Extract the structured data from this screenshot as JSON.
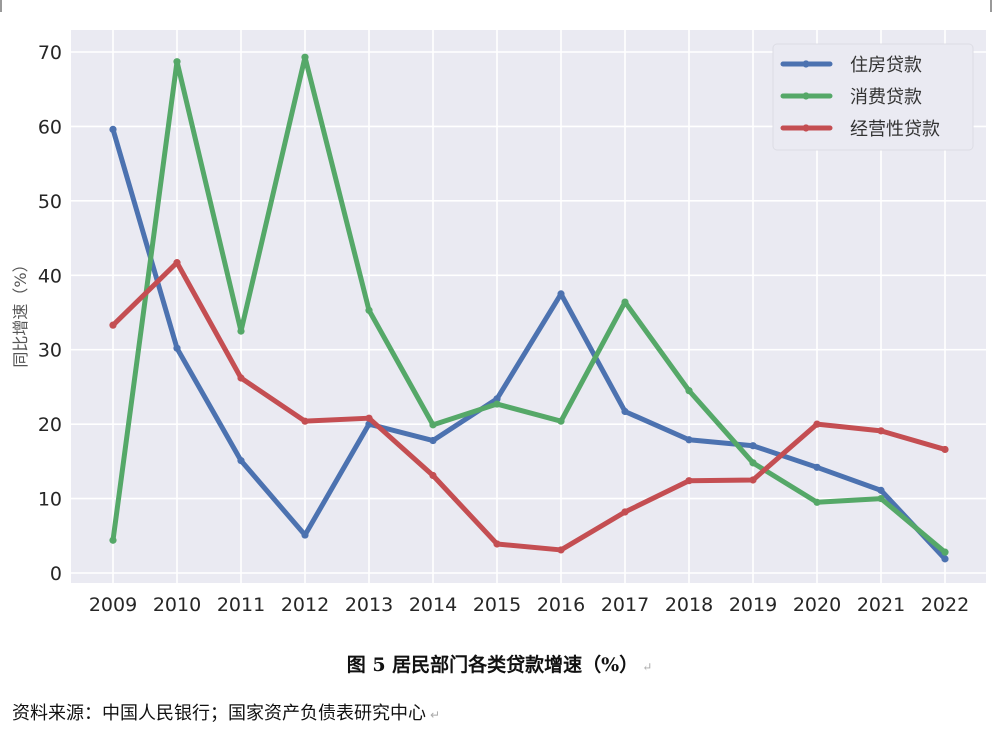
{
  "chart_data": {
    "type": "line",
    "title": "图 5 居民部门各类贷款增速（%）",
    "xlabel": "",
    "ylabel": "同比增速（%）",
    "ylim": [
      -1.5,
      73
    ],
    "yticks": [
      0,
      10,
      20,
      30,
      40,
      50,
      60,
      70
    ],
    "grid": true,
    "legend_position": "upper right",
    "categories": [
      "2009",
      "2010",
      "2011",
      "2012",
      "2013",
      "2014",
      "2015",
      "2016",
      "2017",
      "2018",
      "2019",
      "2020",
      "2021",
      "2022"
    ],
    "series": [
      {
        "name": "住房贷款",
        "color": "#4c72b0",
        "values": [
          59.6,
          30.2,
          15.1,
          5.1,
          20.0,
          17.8,
          23.4,
          37.5,
          21.7,
          17.9,
          17.1,
          14.2,
          11.1,
          1.9
        ]
      },
      {
        "name": "消费贷款",
        "color": "#55a868",
        "values": [
          4.4,
          68.7,
          32.5,
          69.3,
          35.3,
          19.9,
          22.7,
          20.4,
          36.4,
          24.5,
          14.8,
          9.5,
          10.0,
          2.8
        ]
      },
      {
        "name": "经营性贷款",
        "color": "#c44e52",
        "values": [
          33.3,
          41.7,
          26.2,
          20.4,
          20.8,
          13.1,
          3.9,
          3.1,
          8.2,
          12.4,
          12.5,
          20.0,
          19.1,
          16.6
        ]
      }
    ]
  },
  "figure": {
    "caption": "图 5 居民部门各类贷款增速（%）",
    "source": "资料来源：中国人民银行；国家资产负债表研究中心",
    "paragraph_mark": "↵"
  },
  "style": {
    "plot_bg": "#eaeaf2",
    "grid_color": "#ffffff",
    "legend_bg": "#eaeaf2"
  }
}
